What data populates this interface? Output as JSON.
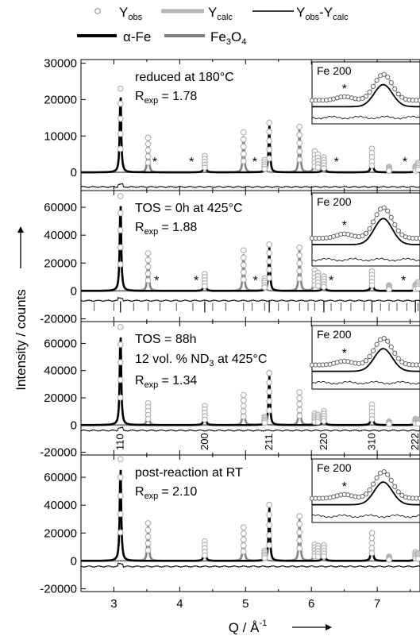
{
  "legend": {
    "yobs_main": "Y",
    "yobs_sub": "obs",
    "ycalc_main": "Y",
    "ycalc_sub": "calc",
    "diff_a": "Y",
    "diff_a_sub": "obs",
    "diff_dash": "-",
    "diff_b": "Y",
    "diff_b_sub": "calc",
    "afe": "α-Fe",
    "fe3o4_a": "Fe",
    "fe3o4_s1": "3",
    "fe3o4_b": "O",
    "fe3o4_s2": "4"
  },
  "axes": {
    "ylabel": "Intensity / counts",
    "xlabel_main": "Q / Å",
    "xlabel_sup": "-1"
  },
  "colors": {
    "obs_marker": "#b4b4b4",
    "calc": "#b4b4b4",
    "alpha_fe": "#000000",
    "fe3o4": "#808080",
    "difference": "#000000"
  },
  "chart_data": {
    "type": "line",
    "xlim": [
      2.5,
      7.65
    ],
    "x_ticks": [
      3,
      4,
      5,
      6,
      7
    ],
    "x_tick_labels": [
      "3",
      "4",
      "5",
      "6",
      "7"
    ],
    "series_names": [
      "Yobs",
      "Ycalc",
      "Yobs-Ycalc",
      "α-Fe",
      "Fe3O4"
    ],
    "hkl_reflections": [
      {
        "label": "110",
        "q": 3.1
      },
      {
        "label": "200",
        "q": 4.38
      },
      {
        "label": "211",
        "q": 5.36
      },
      {
        "label": "220",
        "q": 6.19
      },
      {
        "label": "310",
        "q": 6.92
      },
      {
        "label": "222",
        "q": 7.58
      }
    ],
    "panels": [
      {
        "condition": "reduced at 180°C",
        "condition_line2": "",
        "rexp_label": "R",
        "rexp_sub": "exp",
        "rexp_value": "= 1.78",
        "ylim": [
          -5000,
          31000
        ],
        "y_ticks": [
          0,
          10000,
          20000,
          30000
        ],
        "y_tick_labels": [
          "0",
          "10000",
          "20000",
          "30000"
        ],
        "diff_offset": -4000,
        "alpha_fe_peaks": [
          [
            3.1,
            23000
          ],
          [
            4.38,
            4500
          ],
          [
            5.36,
            13500
          ],
          [
            6.19,
            4000
          ],
          [
            6.92,
            6500
          ],
          [
            7.58,
            1500
          ]
        ],
        "fe3o4_peaks": [
          [
            3.52,
            9500
          ],
          [
            4.97,
            11000
          ],
          [
            5.29,
            3000
          ],
          [
            5.82,
            12500
          ],
          [
            6.05,
            5500
          ],
          [
            6.1,
            4500
          ],
          [
            7.18,
            1500
          ],
          [
            7.62,
            2500
          ]
        ],
        "star_positions": [
          3.62,
          4.18,
          5.14,
          6.38,
          7.42
        ],
        "tick_rows": 0,
        "show_hkl": false,
        "inset_title": "Fe 200",
        "inset_star": true
      },
      {
        "condition": "TOS = 0h at 425°C",
        "condition_line2": "",
        "rexp_label": "R",
        "rexp_sub": "exp",
        "rexp_value": "= 1.88",
        "ylim": [
          -22000,
          72000
        ],
        "y_ticks": [
          -20000,
          0,
          20000,
          40000,
          60000
        ],
        "y_tick_labels": [
          "-20000",
          "0",
          "20000",
          "40000",
          "60000"
        ],
        "diff_offset": -7000,
        "alpha_fe_peaks": [
          [
            3.1,
            68000
          ],
          [
            4.38,
            12000
          ],
          [
            5.36,
            33000
          ],
          [
            6.19,
            10000
          ],
          [
            6.92,
            14000
          ],
          [
            7.58,
            4000
          ]
        ],
        "fe3o4_peaks": [
          [
            3.52,
            27000
          ],
          [
            4.97,
            29000
          ],
          [
            5.29,
            8000
          ],
          [
            5.82,
            31000
          ],
          [
            6.05,
            14000
          ],
          [
            6.1,
            12000
          ],
          [
            7.18,
            4000
          ],
          [
            7.62,
            6000
          ]
        ],
        "star_positions": [
          3.65,
          4.25,
          5.15,
          6.3,
          7.4
        ],
        "tick_rows": 2,
        "show_hkl": false,
        "inset_title": "Fe 200",
        "inset_star": true
      },
      {
        "condition": "TOS = 88h",
        "condition_line2_a": "12 vol. % ND",
        "condition_line2_sub": "3",
        "condition_line2_b": " at 425°C",
        "rexp_label": "R",
        "rexp_sub": "exp",
        "rexp_value": "= 1.34",
        "ylim": [
          -22000,
          76000
        ],
        "y_ticks": [
          -20000,
          0,
          20000,
          40000,
          60000
        ],
        "y_tick_labels": [
          "-20000",
          "0",
          "20000",
          "40000",
          "60000"
        ],
        "diff_offset": -4000,
        "alpha_fe_peaks": [
          [
            3.1,
            72000
          ],
          [
            4.38,
            14000
          ],
          [
            5.36,
            38000
          ],
          [
            6.19,
            10000
          ],
          [
            6.92,
            15000
          ],
          [
            7.58,
            4000
          ]
        ],
        "fe3o4_peaks": [
          [
            3.52,
            16000
          ],
          [
            4.97,
            22000
          ],
          [
            5.29,
            5000
          ],
          [
            5.82,
            24000
          ],
          [
            6.05,
            8000
          ],
          [
            6.1,
            7000
          ],
          [
            7.18,
            2500
          ],
          [
            7.62,
            3500
          ]
        ],
        "star_positions": [],
        "tick_rows": 0,
        "show_hkl": true,
        "inset_title": "Fe 200",
        "inset_star": true
      },
      {
        "condition": "post-reaction at RT",
        "condition_line2": "",
        "rexp_label": "R",
        "rexp_sub": "exp",
        "rexp_value": "= 2.10",
        "ylim": [
          -22000,
          76000
        ],
        "y_ticks": [
          -20000,
          0,
          20000,
          40000,
          60000
        ],
        "y_tick_labels": [
          "-20000",
          "0",
          "20000",
          "40000",
          "60000"
        ],
        "diff_offset": -4000,
        "alpha_fe_peaks": [
          [
            3.1,
            73000
          ],
          [
            4.38,
            14000
          ],
          [
            5.36,
            40000
          ],
          [
            6.19,
            11000
          ],
          [
            6.92,
            20000
          ],
          [
            7.58,
            6000
          ]
        ],
        "fe3o4_peaks": [
          [
            3.52,
            27000
          ],
          [
            4.97,
            24000
          ],
          [
            5.29,
            6000
          ],
          [
            5.82,
            32000
          ],
          [
            6.05,
            11000
          ],
          [
            6.1,
            10000
          ],
          [
            7.18,
            3000
          ],
          [
            7.62,
            5000
          ]
        ],
        "star_positions": [],
        "tick_rows": 0,
        "show_hkl": false,
        "inset_title": "Fe 200",
        "inset_star": true
      }
    ]
  }
}
